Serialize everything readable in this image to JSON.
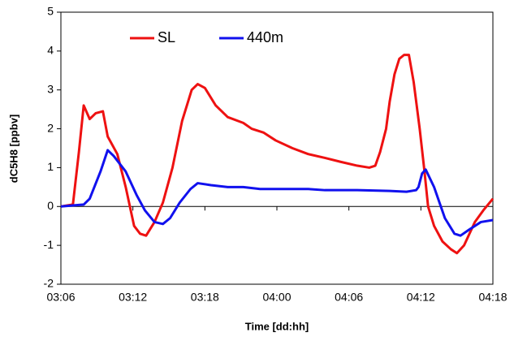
{
  "chart_data": {
    "type": "line",
    "xlabel": "Time [dd:hh]",
    "ylabel": "dC5H8 [ppbv]",
    "xlim": [
      78,
      114
    ],
    "ylim": [
      -2,
      5
    ],
    "xticks": [
      {
        "value": 78,
        "label": "03:06"
      },
      {
        "value": 84,
        "label": "03:12"
      },
      {
        "value": 90,
        "label": "03:18"
      },
      {
        "value": 96,
        "label": "04:00"
      },
      {
        "value": 102,
        "label": "04:06"
      },
      {
        "value": 108,
        "label": "04:12"
      },
      {
        "value": 114,
        "label": "04:18"
      }
    ],
    "yticks": [
      -2,
      -1,
      0,
      1,
      2,
      3,
      4,
      5
    ],
    "legend": "upper left",
    "series": [
      {
        "name": "SL",
        "color": "#ee1111",
        "x": [
          78.0,
          79.0,
          79.5,
          79.9,
          80.4,
          80.9,
          81.5,
          81.9,
          82.7,
          83.4,
          84.1,
          84.6,
          85.1,
          85.8,
          86.5,
          87.3,
          88.1,
          88.9,
          89.4,
          90.0,
          90.9,
          91.9,
          93.2,
          93.9,
          94.9,
          95.9,
          97.3,
          98.6,
          100.0,
          101.3,
          102.7,
          103.7,
          104.2,
          104.6,
          105.1,
          105.4,
          105.8,
          106.2,
          106.6,
          107.0,
          107.4,
          107.9,
          108.3,
          108.6,
          109.1,
          109.8,
          110.5,
          111.0,
          111.6,
          112.5,
          113.2,
          114.0
        ],
        "values": [
          0,
          0.05,
          1.4,
          2.6,
          2.25,
          2.4,
          2.45,
          1.8,
          1.35,
          0.5,
          -0.5,
          -0.7,
          -0.75,
          -0.4,
          0.1,
          1.0,
          2.2,
          3.0,
          3.15,
          3.05,
          2.6,
          2.3,
          2.15,
          2.0,
          1.9,
          1.7,
          1.5,
          1.35,
          1.25,
          1.15,
          1.05,
          1.0,
          1.05,
          1.4,
          2.0,
          2.7,
          3.4,
          3.8,
          3.9,
          3.9,
          3.2,
          2.0,
          0.9,
          0,
          -0.5,
          -0.9,
          -1.1,
          -1.2,
          -1.0,
          -0.4,
          -0.1,
          0.2
        ]
      },
      {
        "name": "440m",
        "color": "#1111ee",
        "x": [
          78.0,
          79.9,
          80.4,
          81.3,
          81.9,
          82.4,
          83.4,
          84.3,
          85.0,
          85.8,
          86.5,
          87.1,
          87.9,
          88.8,
          89.4,
          90.5,
          91.9,
          93.2,
          94.6,
          98.6,
          100.0,
          102.7,
          105.4,
          106.8,
          107.6,
          107.8,
          108.1,
          108.4,
          109.1,
          110.0,
          110.8,
          111.3,
          112.0,
          113.0,
          114.0
        ],
        "values": [
          0,
          0.05,
          0.2,
          0.9,
          1.45,
          1.3,
          0.9,
          0.3,
          -0.1,
          -0.4,
          -0.45,
          -0.3,
          0.1,
          0.45,
          0.6,
          0.55,
          0.5,
          0.5,
          0.45,
          0.45,
          0.42,
          0.42,
          0.4,
          0.38,
          0.42,
          0.5,
          0.85,
          0.95,
          0.5,
          -0.3,
          -0.7,
          -0.75,
          -0.6,
          -0.4,
          -0.35
        ]
      }
    ]
  }
}
